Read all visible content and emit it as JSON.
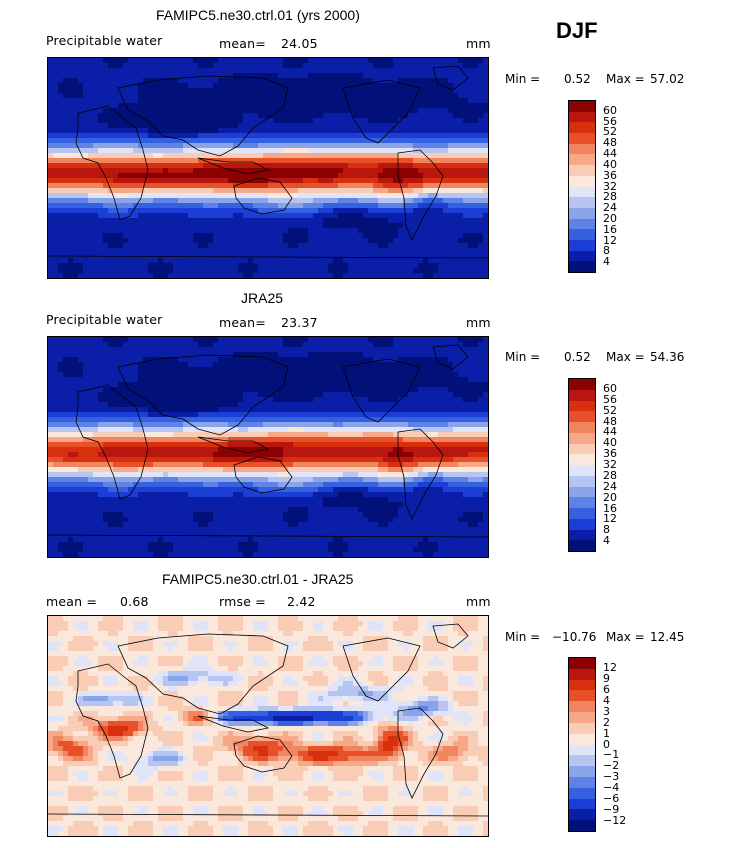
{
  "season": "DJF",
  "panels": [
    {
      "title": "FAMIPC5.ne30.ctrl.01 (yrs 2000)",
      "left_label": "Precipitable water",
      "stat1_label": "mean=",
      "stat1_value": "24.05",
      "stat2_label": "",
      "stat2_value": "",
      "units": "mm",
      "min_label": "Min =",
      "min_value": "0.52",
      "max_label": "Max =",
      "max_value": "57.02",
      "colorbar_labels": [
        "60",
        "56",
        "52",
        "48",
        "44",
        "40",
        "36",
        "32",
        "28",
        "24",
        "20",
        "16",
        "12",
        "8",
        "4"
      ]
    },
    {
      "title": "JRA25",
      "left_label": "Precipitable water",
      "stat1_label": "mean=",
      "stat1_value": "23.37",
      "stat2_label": "",
      "stat2_value": "",
      "units": "mm",
      "min_label": "Min =",
      "min_value": "0.52",
      "max_label": "Max =",
      "max_value": "54.36",
      "colorbar_labels": [
        "60",
        "56",
        "52",
        "48",
        "44",
        "40",
        "36",
        "32",
        "28",
        "24",
        "20",
        "16",
        "12",
        "8",
        "4"
      ]
    },
    {
      "title": "FAMIPC5.ne30.ctrl.01 - JRA25",
      "left_label": "mean =",
      "stat1_label": "",
      "stat1_value": "0.68",
      "stat2_label": "rmse =",
      "stat2_value": "2.42",
      "units": "mm",
      "min_label": "Min =",
      "min_value": "−10.76",
      "max_label": "Max =",
      "max_value": "12.45",
      "colorbar_labels": [
        "12",
        "9",
        "6",
        "4",
        "3",
        "2",
        "1",
        "0",
        "−1",
        "−2",
        "−3",
        "−4",
        "−6",
        "−9",
        "−12"
      ]
    }
  ],
  "chart_data": [
    {
      "type": "heatmap",
      "title": "FAMIPC5.ne30.ctrl.01 (yrs 2000)",
      "variable": "Precipitable water",
      "units": "mm",
      "mean": 24.05,
      "min": 0.52,
      "max": 57.02,
      "contour_levels": [
        4,
        8,
        12,
        16,
        20,
        24,
        28,
        32,
        36,
        40,
        44,
        48,
        52,
        56,
        60
      ]
    },
    {
      "type": "heatmap",
      "title": "JRA25",
      "variable": "Precipitable water",
      "units": "mm",
      "mean": 23.37,
      "min": 0.52,
      "max": 54.36,
      "contour_levels": [
        4,
        8,
        12,
        16,
        20,
        24,
        28,
        32,
        36,
        40,
        44,
        48,
        52,
        56,
        60
      ]
    },
    {
      "type": "heatmap",
      "title": "FAMIPC5.ne30.ctrl.01 - JRA25",
      "units": "mm",
      "mean": 0.68,
      "rmse": 2.42,
      "min": -10.76,
      "max": 12.45,
      "contour_levels": [
        -12,
        -9,
        -6,
        -4,
        -3,
        -2,
        -1,
        0,
        1,
        2,
        3,
        4,
        6,
        9,
        12
      ]
    }
  ],
  "colors": {
    "seq": [
      "#8b0000",
      "#b8160f",
      "#d8300f",
      "#e8502a",
      "#f08560",
      "#f6a888",
      "#f9cdb5",
      "#fae8dc",
      "#dfe4f8",
      "#b5c4f0",
      "#8aa4ea",
      "#5f82e6",
      "#3560e0",
      "#1b3fd6",
      "#0a1ea8",
      "#02107a"
    ]
  }
}
